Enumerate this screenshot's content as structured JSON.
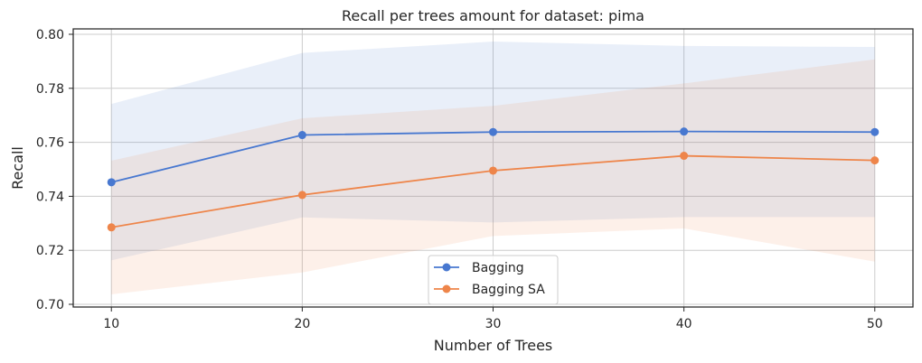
{
  "chart_data": {
    "type": "line",
    "title": "Recall per trees amount for dataset: pima",
    "xlabel": "Number of Trees",
    "ylabel": "Recall",
    "x": [
      10,
      20,
      30,
      40,
      50
    ],
    "x_ticks": [
      "10",
      "20",
      "30",
      "40",
      "50"
    ],
    "y_ticks": [
      "0.70",
      "0.72",
      "0.74",
      "0.76",
      "0.78",
      "0.80"
    ],
    "xlim": [
      8,
      52
    ],
    "ylim": [
      0.699,
      0.802
    ],
    "grid": true,
    "legend_position": "lower-center",
    "series": [
      {
        "name": "Bagging",
        "color": "#4878d0",
        "values": [
          0.7452,
          0.7627,
          0.7638,
          0.764,
          0.7638
        ],
        "lower": [
          0.7163,
          0.7322,
          0.7303,
          0.7323,
          0.7323
        ],
        "upper": [
          0.7742,
          0.7931,
          0.7973,
          0.7957,
          0.7953
        ]
      },
      {
        "name": "Bagging SA",
        "color": "#ee854a",
        "values": [
          0.7285,
          0.7405,
          0.7495,
          0.755,
          0.7533
        ],
        "lower": [
          0.7037,
          0.7118,
          0.7253,
          0.7281,
          0.7158
        ],
        "upper": [
          0.7532,
          0.7689,
          0.7735,
          0.7818,
          0.7907
        ]
      }
    ]
  }
}
